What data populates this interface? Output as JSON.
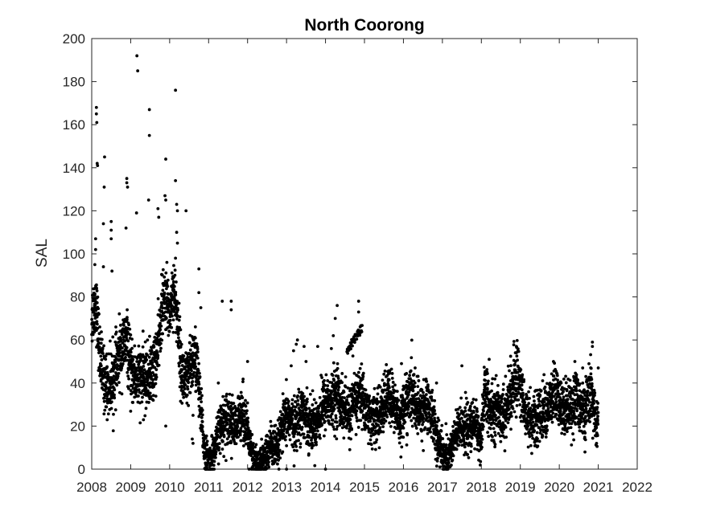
{
  "chart_data": {
    "type": "scatter",
    "title": "North Coorong",
    "xlabel": "",
    "ylabel": "SAL",
    "xlim": [
      2008,
      2022
    ],
    "ylim": [
      0,
      200
    ],
    "xticks": [
      "2008",
      "2009",
      "2010",
      "2011",
      "2012",
      "2013",
      "2014",
      "2015",
      "2016",
      "2017",
      "2018",
      "2019",
      "2020",
      "2021",
      "2022"
    ],
    "yticks": [
      "0",
      "20",
      "40",
      "60",
      "80",
      "100",
      "120",
      "140",
      "160",
      "180",
      "200"
    ],
    "grid": false,
    "marker_color": "#000000",
    "series": [
      {
        "baseline": [
          [
            2008.0,
            70
          ],
          [
            2008.1,
            80
          ],
          [
            2008.2,
            55
          ],
          [
            2008.3,
            42
          ],
          [
            2008.45,
            38
          ],
          [
            2008.6,
            45
          ],
          [
            2008.75,
            55
          ],
          [
            2008.9,
            60
          ],
          [
            2009.0,
            45
          ],
          [
            2009.2,
            42
          ],
          [
            2009.4,
            42
          ],
          [
            2009.55,
            45
          ],
          [
            2009.7,
            55
          ],
          [
            2009.8,
            75
          ],
          [
            2009.9,
            80
          ],
          [
            2010.0,
            72
          ],
          [
            2010.1,
            85
          ],
          [
            2010.2,
            70
          ],
          [
            2010.3,
            45
          ],
          [
            2010.45,
            40
          ],
          [
            2010.6,
            52
          ],
          [
            2010.7,
            50
          ],
          [
            2010.78,
            30
          ],
          [
            2010.9,
            8
          ],
          [
            2011.0,
            3
          ],
          [
            2011.15,
            8
          ],
          [
            2011.3,
            20
          ],
          [
            2011.5,
            25
          ],
          [
            2011.7,
            18
          ],
          [
            2011.85,
            28
          ],
          [
            2011.95,
            22
          ],
          [
            2012.05,
            10
          ],
          [
            2012.15,
            4
          ],
          [
            2012.3,
            2
          ],
          [
            2012.45,
            5
          ],
          [
            2012.6,
            12
          ],
          [
            2012.75,
            8
          ],
          [
            2012.9,
            20
          ],
          [
            2013.05,
            25
          ],
          [
            2013.2,
            20
          ],
          [
            2013.4,
            28
          ],
          [
            2013.55,
            22
          ],
          [
            2013.7,
            20
          ],
          [
            2013.85,
            25
          ],
          [
            2014.0,
            32
          ],
          [
            2014.15,
            30
          ],
          [
            2014.3,
            35
          ],
          [
            2014.45,
            28
          ],
          [
            2014.6,
            25
          ],
          [
            2014.75,
            32
          ],
          [
            2014.9,
            35
          ],
          [
            2015.0,
            30
          ],
          [
            2015.2,
            22
          ],
          [
            2015.4,
            25
          ],
          [
            2015.6,
            35
          ],
          [
            2015.8,
            28
          ],
          [
            2015.9,
            22
          ],
          [
            2016.0,
            28
          ],
          [
            2016.2,
            35
          ],
          [
            2016.4,
            26
          ],
          [
            2016.6,
            30
          ],
          [
            2016.75,
            25
          ],
          [
            2016.85,
            15
          ],
          [
            2017.0,
            8
          ],
          [
            2017.15,
            5
          ],
          [
            2017.3,
            14
          ],
          [
            2017.5,
            20
          ],
          [
            2017.7,
            18
          ],
          [
            2017.85,
            22
          ],
          [
            2018.0,
            12
          ],
          [
            2018.1,
            40
          ],
          [
            2018.2,
            25
          ],
          [
            2018.4,
            28
          ],
          [
            2018.6,
            25
          ],
          [
            2018.8,
            38
          ],
          [
            2018.95,
            45
          ],
          [
            2019.1,
            28
          ],
          [
            2019.3,
            22
          ],
          [
            2019.5,
            25
          ],
          [
            2019.7,
            28
          ],
          [
            2019.9,
            35
          ],
          [
            2020.05,
            28
          ],
          [
            2020.3,
            30
          ],
          [
            2020.5,
            32
          ],
          [
            2020.65,
            25
          ],
          [
            2020.8,
            38
          ],
          [
            2020.95,
            18
          ],
          [
            2021.0,
            25
          ]
        ],
        "spread": 9,
        "outliers": [
          [
            2008.12,
            168
          ],
          [
            2008.12,
            165
          ],
          [
            2008.13,
            161
          ],
          [
            2008.14,
            142
          ],
          [
            2008.15,
            141
          ],
          [
            2008.1,
            107
          ],
          [
            2008.1,
            102
          ],
          [
            2008.08,
            95
          ],
          [
            2008.33,
            145
          ],
          [
            2008.32,
            131
          ],
          [
            2008.3,
            114
          ],
          [
            2008.3,
            94
          ],
          [
            2008.5,
            115
          ],
          [
            2008.5,
            111
          ],
          [
            2008.5,
            107
          ],
          [
            2008.52,
            92
          ],
          [
            2008.9,
            135
          ],
          [
            2008.9,
            133
          ],
          [
            2008.92,
            131
          ],
          [
            2008.88,
            112
          ],
          [
            2009.16,
            192
          ],
          [
            2009.18,
            185
          ],
          [
            2009.15,
            119
          ],
          [
            2009.48,
            167
          ],
          [
            2009.48,
            155
          ],
          [
            2009.46,
            125
          ],
          [
            2009.7,
            121
          ],
          [
            2009.72,
            117
          ],
          [
            2009.9,
            144
          ],
          [
            2009.88,
            127
          ],
          [
            2009.9,
            125
          ],
          [
            2009.9,
            20
          ],
          [
            2010.15,
            176
          ],
          [
            2010.15,
            134
          ],
          [
            2010.18,
            123
          ],
          [
            2010.2,
            120
          ],
          [
            2010.18,
            110
          ],
          [
            2010.2,
            105
          ],
          [
            2010.15,
            98
          ],
          [
            2010.42,
            120
          ],
          [
            2010.75,
            93
          ],
          [
            2010.75,
            82
          ],
          [
            2010.8,
            75
          ],
          [
            2010.6,
            25
          ],
          [
            2010.58,
            14
          ],
          [
            2010.6,
            12
          ],
          [
            2011.35,
            78
          ],
          [
            2011.58,
            78
          ],
          [
            2011.58,
            74
          ],
          [
            2011.25,
            40
          ],
          [
            2012.0,
            50
          ],
          [
            2013.12,
            48
          ],
          [
            2013.18,
            55
          ],
          [
            2013.25,
            58
          ],
          [
            2013.28,
            60
          ],
          [
            2013.45,
            57
          ],
          [
            2013.5,
            50
          ],
          [
            2013.8,
            57
          ],
          [
            2014.0,
            0
          ],
          [
            2014.15,
            56
          ],
          [
            2014.2,
            62
          ],
          [
            2014.25,
            70
          ],
          [
            2014.3,
            76
          ],
          [
            2014.85,
            78
          ],
          [
            2014.85,
            73
          ],
          [
            2015.95,
            49
          ],
          [
            2016.3,
            47
          ],
          [
            2016.85,
            40
          ],
          [
            2017.5,
            48
          ],
          [
            2018.2,
            51
          ],
          [
            2018.9,
            57
          ],
          [
            2019.85,
            50
          ],
          [
            2020.4,
            50
          ],
          [
            2020.85,
            59
          ],
          [
            2020.85,
            57
          ],
          [
            2020.6,
            47
          ],
          [
            2021.0,
            47
          ],
          [
            2012.1,
            0
          ],
          [
            2012.4,
            0
          ],
          [
            2013.0,
            0
          ],
          [
            2017.05,
            0
          ],
          [
            2017.1,
            0
          ]
        ],
        "clusters": [
          {
            "x_start": 2014.55,
            "x_end": 2014.95,
            "y_start": 55,
            "y_end": 66,
            "count": 40
          }
        ]
      }
    ]
  }
}
